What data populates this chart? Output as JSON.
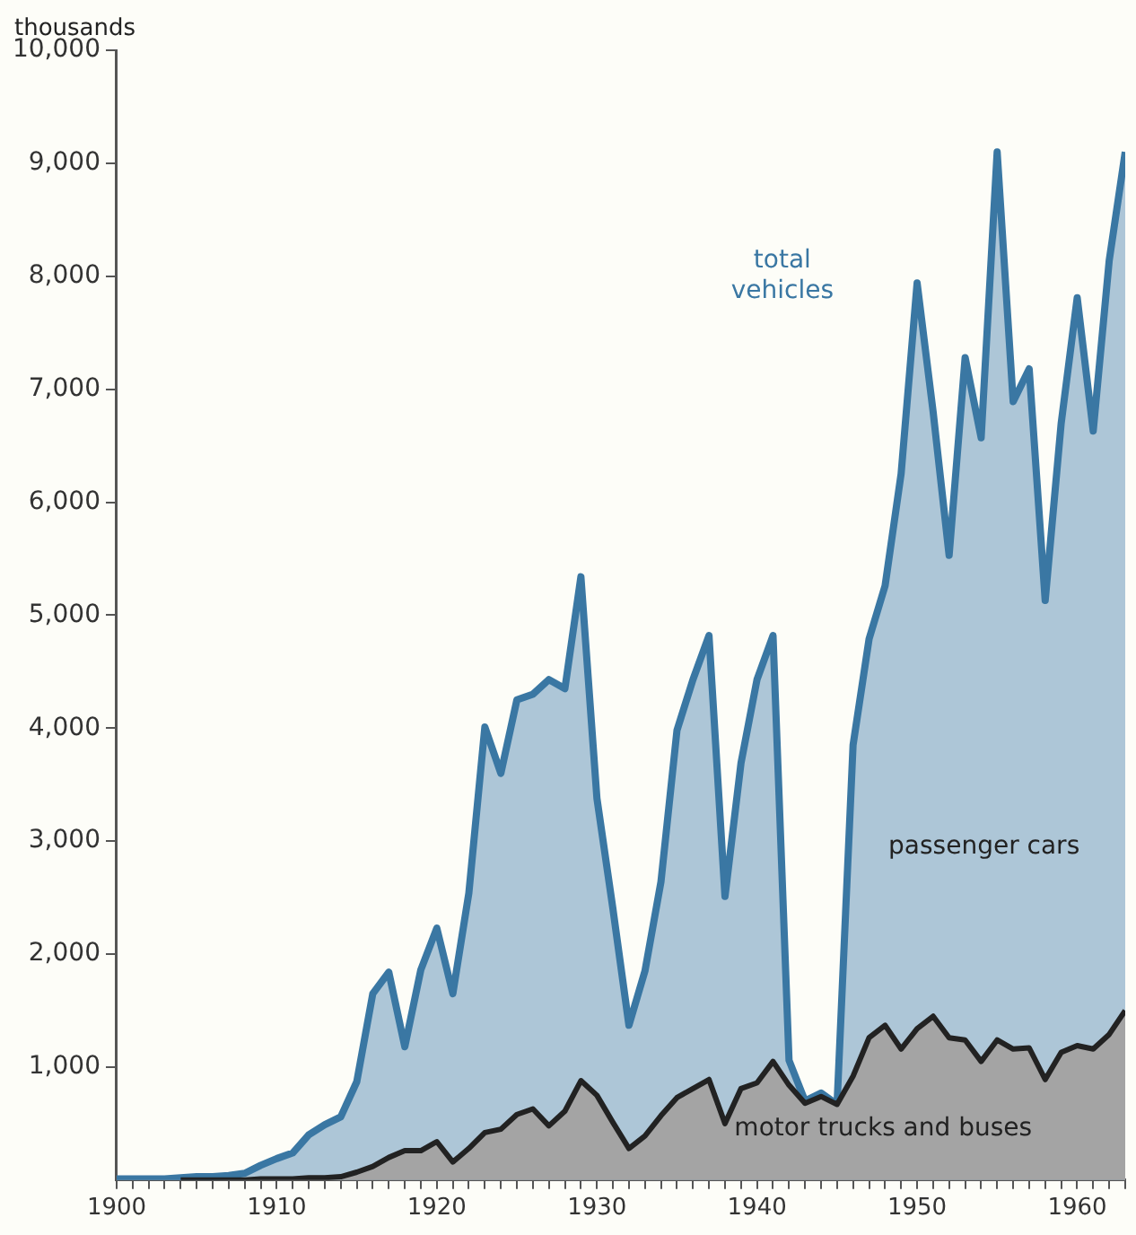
{
  "chart_data": {
    "type": "area",
    "ylabel": "thousands",
    "x": [
      1900,
      1901,
      1902,
      1903,
      1904,
      1905,
      1906,
      1907,
      1908,
      1909,
      1910,
      1911,
      1912,
      1913,
      1914,
      1915,
      1916,
      1917,
      1918,
      1919,
      1920,
      1921,
      1922,
      1923,
      1924,
      1925,
      1926,
      1927,
      1928,
      1929,
      1930,
      1931,
      1932,
      1933,
      1934,
      1935,
      1936,
      1937,
      1938,
      1939,
      1940,
      1941,
      1942,
      1943,
      1944,
      1945,
      1946,
      1947,
      1948,
      1949,
      1950,
      1951,
      1952,
      1953,
      1954,
      1955,
      1956,
      1957,
      1958,
      1959,
      1960,
      1961,
      1962,
      1963
    ],
    "series": [
      {
        "name": "motor trucks and buses",
        "color": "#222222",
        "values": [
          null,
          null,
          null,
          null,
          0,
          0,
          0,
          0,
          0,
          10,
          10,
          10,
          20,
          20,
          30,
          70,
          120,
          200,
          260,
          260,
          340,
          160,
          280,
          420,
          450,
          580,
          630,
          480,
          610,
          880,
          750,
          510,
          280,
          390,
          570,
          730,
          810,
          890,
          500,
          810,
          860,
          1050,
          840,
          680,
          740,
          670,
          920,
          1260,
          1370,
          1160,
          1340,
          1450,
          1260,
          1240,
          1050,
          1240,
          1160,
          1170,
          890,
          1130,
          1190,
          1160,
          1290,
          1500
        ]
      },
      {
        "name": "total vehicles",
        "color": "#3a77a3",
        "values": [
          10,
          10,
          10,
          10,
          20,
          30,
          30,
          40,
          60,
          130,
          190,
          240,
          400,
          490,
          560,
          870,
          1650,
          1840,
          1180,
          1860,
          2230,
          1650,
          2540,
          4010,
          3600,
          4250,
          4300,
          4430,
          4350,
          5340,
          3380,
          2400,
          1370,
          1850,
          2640,
          3980,
          4430,
          4820,
          2510,
          3690,
          4430,
          4820,
          1060,
          700,
          770,
          670,
          3850,
          4790,
          5260,
          6250,
          7940,
          6800,
          5530,
          7280,
          6570,
          9100,
          6890,
          7180,
          5130,
          6700,
          7810,
          6630,
          8140,
          9100
        ]
      }
    ],
    "annotations": [
      "passenger cars"
    ],
    "xlim": [
      1900,
      1963
    ],
    "xticks": [
      1900,
      {
        "value": 1901,
        "label": null
      },
      {
        "value": 1902,
        "label": null
      },
      {
        "value": 1903,
        "label": null
      },
      {
        "value": 1904,
        "label": null
      },
      {
        "value": 1905,
        "label": null
      },
      {
        "value": 1906,
        "label": null
      },
      {
        "value": 1907,
        "label": null
      },
      {
        "value": 1908,
        "label": null
      },
      {
        "value": 1909,
        "label": null
      },
      1910,
      {
        "value": 1911,
        "label": null
      },
      {
        "value": 1912,
        "label": null
      },
      {
        "value": 1913,
        "label": null
      },
      {
        "value": 1914,
        "label": null
      },
      {
        "value": 1915,
        "label": null
      },
      {
        "value": 1916,
        "label": null
      },
      {
        "value": 1917,
        "label": null
      },
      {
        "value": 1918,
        "label": null
      },
      {
        "value": 1919,
        "label": null
      },
      1920,
      {
        "value": 1921,
        "label": null
      },
      {
        "value": 1922,
        "label": null
      },
      {
        "value": 1923,
        "label": null
      },
      {
        "value": 1924,
        "label": null
      },
      {
        "value": 1925,
        "label": null
      },
      {
        "value": 1926,
        "label": null
      },
      {
        "value": 1927,
        "label": null
      },
      {
        "value": 1928,
        "label": null
      },
      {
        "value": 1929,
        "label": null
      },
      1930,
      {
        "value": 1931,
        "label": null
      },
      {
        "value": 1932,
        "label": null
      },
      {
        "value": 1933,
        "label": null
      },
      {
        "value": 1934,
        "label": null
      },
      {
        "value": 1935,
        "label": null
      },
      {
        "value": 1936,
        "label": null
      },
      {
        "value": 1937,
        "label": null
      },
      {
        "value": 1938,
        "label": null
      },
      {
        "value": 1939,
        "label": null
      },
      1940,
      {
        "value": 1941,
        "label": null
      },
      {
        "value": 1942,
        "label": null
      },
      {
        "value": 1943,
        "label": null
      },
      {
        "value": 1944,
        "label": null
      },
      {
        "value": 1945,
        "label": null
      },
      {
        "value": 1946,
        "label": null
      },
      {
        "value": 1947,
        "label": null
      },
      {
        "value": 1948,
        "label": null
      },
      {
        "value": 1949,
        "label": null
      },
      1950,
      {
        "value": 1951,
        "label": null
      },
      {
        "value": 1952,
        "label": null
      },
      {
        "value": 1953,
        "label": null
      },
      {
        "value": 1954,
        "label": null
      },
      {
        "value": 1955,
        "label": null
      },
      {
        "value": 1956,
        "label": null
      },
      {
        "value": 1957,
        "label": null
      },
      {
        "value": 1958,
        "label": null
      },
      {
        "value": 1959,
        "label": null
      },
      1960,
      {
        "value": 1961,
        "label": null
      },
      {
        "value": 1962,
        "label": null
      },
      {
        "value": 1963,
        "label": null
      }
    ],
    "ylim": [
      0,
      10000
    ],
    "yticks": [
      {
        "value": 1000,
        "label": "1,000"
      },
      {
        "value": 2000,
        "label": "2,000"
      },
      {
        "value": 3000,
        "label": "3,000"
      },
      {
        "value": 4000,
        "label": "4,000"
      },
      {
        "value": 5000,
        "label": "5,000"
      },
      {
        "value": 6000,
        "label": "6,000"
      },
      {
        "value": 7000,
        "label": "7,000"
      },
      {
        "value": 8000,
        "label": "8,000"
      },
      {
        "value": 9000,
        "label": "9,000"
      },
      {
        "value": 10000,
        "label": "10,000"
      }
    ],
    "grid": false,
    "legend": false,
    "line_style": "solid"
  }
}
